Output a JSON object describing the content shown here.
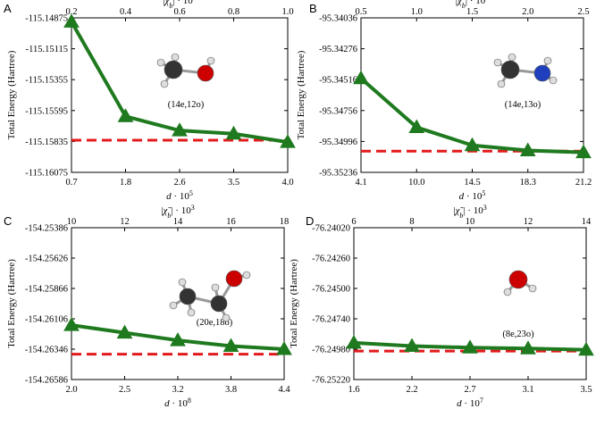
{
  "chart_data": [
    {
      "type": "line",
      "panel": "A",
      "ylabel": "Total Energy (Hartree)",
      "xlabel": "d · 10^5",
      "x2label": "|χ̃b| · 10^3",
      "y_ticks": [
        "-115.14875",
        "-115.15115",
        "-115.15355",
        "-115.15595",
        "-115.15835",
        "-115.16075"
      ],
      "ylim": [
        -115.16075,
        -115.14875
      ],
      "x_ticks": [
        "0.7",
        "1.8",
        "2.6",
        "3.5",
        "4.0"
      ],
      "x2_ticks": [
        "0.2",
        "0.4",
        "0.6",
        "0.8",
        "1.0"
      ],
      "series": [
        {
          "x_index": [
            0,
            1,
            2,
            3,
            4
          ],
          "values": [
            -115.14905,
            -115.1564,
            -115.1575,
            -115.15775,
            -115.1584
          ]
        }
      ],
      "reference": -115.15825,
      "annotation": "(14e,12o)",
      "molecule": "methanol"
    },
    {
      "type": "line",
      "panel": "B",
      "ylabel": "Total Energy (Hartree)",
      "xlabel": "d · 10^5",
      "x2label": "|χ̃b| · 10^3",
      "y_ticks": [
        "-95.34036",
        "-95.34276",
        "-95.34516",
        "-95.34756",
        "-95.34996",
        "-95.35236"
      ],
      "ylim": [
        -95.35236,
        -95.34036
      ],
      "x_ticks": [
        "4.1",
        "10.0",
        "14.5",
        "18.3",
        "21.2"
      ],
      "x2_ticks": [
        "0.5",
        "1.0",
        "1.5",
        "2.0",
        "2.5"
      ],
      "series": [
        {
          "x_index": [
            0,
            1,
            2,
            3,
            4
          ],
          "values": [
            -95.34506,
            -95.34886,
            -95.35026,
            -95.35066,
            -95.35081
          ]
        }
      ],
      "reference": -95.35071,
      "annotation": "(14e,13o)",
      "molecule": "methylamine"
    },
    {
      "type": "line",
      "panel": "C",
      "ylabel": "Total Energy (Hartree)",
      "xlabel": "d · 10^8",
      "x2label": "|χ̃b| · 10^3",
      "y_ticks": [
        "-154.25386",
        "-154.25626",
        "-154.25866",
        "-154.26106",
        "-154.26346",
        "-154.26586"
      ],
      "ylim": [
        -154.26586,
        -154.25386
      ],
      "x_ticks": [
        "2.0",
        "2.5",
        "3.2",
        "3.8",
        "4.4"
      ],
      "x2_ticks": [
        "10",
        "12",
        "14",
        "16",
        "18"
      ],
      "series": [
        {
          "x_index": [
            0,
            1,
            2,
            3,
            4
          ],
          "values": [
            -154.26156,
            -154.26216,
            -154.26276,
            -154.26321,
            -154.26346
          ]
        }
      ],
      "reference": -154.26386,
      "annotation": "(20e,18o)",
      "molecule": "ethanol"
    },
    {
      "type": "line",
      "panel": "D",
      "ylabel": "Total Energy (Hartree)",
      "xlabel": "d · 10^7",
      "x2label": "|χ̃b| · 10^3",
      "y_ticks": [
        "-76.24020",
        "-76.24260",
        "-76.24500",
        "-76.24740",
        "-76.24980",
        "-76.25220"
      ],
      "ylim": [
        -76.2522,
        -76.2402
      ],
      "x_ticks": [
        "1.6",
        "2.2",
        "2.7",
        "3.1",
        "3.5"
      ],
      "x2_ticks": [
        "6",
        "8",
        "10",
        "12",
        "14"
      ],
      "series": [
        {
          "x_index": [
            0,
            1,
            2,
            3,
            4
          ],
          "values": [
            -76.2493,
            -76.24955,
            -76.24968,
            -76.24975,
            -76.24985
          ]
        }
      ],
      "reference": -76.24995,
      "annotation": "(8e,23o)",
      "molecule": "water"
    }
  ],
  "colors": {
    "series": "#1f7a1f",
    "reference": "#e31a1c",
    "carbon": "#333333",
    "oxygen": "#cc0000",
    "nitrogen": "#1f3fbf",
    "hydrogen": "#dddddd"
  }
}
